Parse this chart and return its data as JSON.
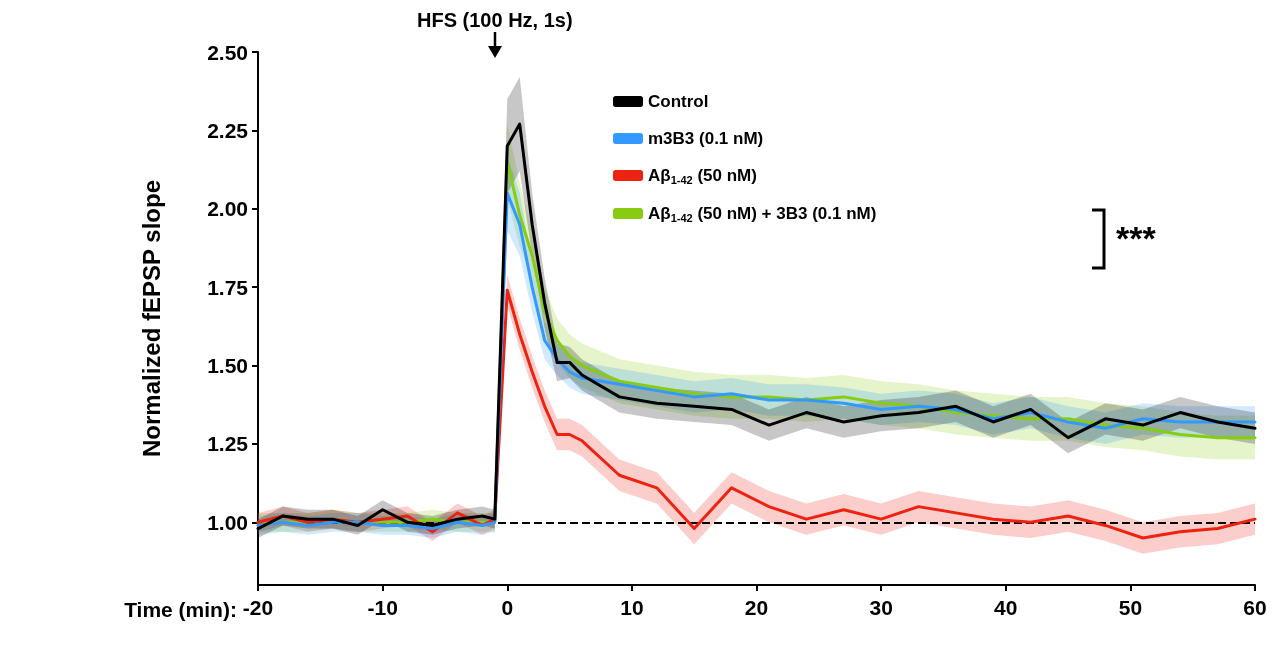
{
  "chart_data": {
    "type": "line",
    "xlabel": "Time (min):",
    "ylabel": "Normalized fEPSP slope",
    "x": [
      -20,
      -18,
      -16,
      -14,
      -12,
      -10,
      -8,
      -6,
      -4,
      -2,
      -1,
      0,
      1,
      2,
      3,
      4,
      5,
      6,
      9,
      12,
      15,
      18,
      21,
      24,
      27,
      30,
      33,
      36,
      39,
      42,
      45,
      48,
      51,
      54,
      57,
      60
    ],
    "series": [
      {
        "name": "Control",
        "color": "#000000",
        "values": [
          0.98,
          1.02,
          1.01,
          1.01,
          0.99,
          1.04,
          1.0,
          0.99,
          1.01,
          1.02,
          1.01,
          2.2,
          2.27,
          1.95,
          1.7,
          1.51,
          1.51,
          1.47,
          1.4,
          1.38,
          1.37,
          1.36,
          1.31,
          1.35,
          1.32,
          1.34,
          1.35,
          1.37,
          1.32,
          1.36,
          1.27,
          1.33,
          1.31,
          1.35,
          1.32,
          1.3
        ],
        "lower": [
          0.95,
          0.99,
          0.98,
          0.98,
          0.96,
          1.01,
          0.97,
          0.96,
          0.98,
          0.99,
          0.98,
          2.05,
          2.12,
          1.85,
          1.62,
          1.45,
          1.46,
          1.42,
          1.35,
          1.33,
          1.32,
          1.31,
          1.26,
          1.3,
          1.27,
          1.29,
          1.3,
          1.32,
          1.27,
          1.31,
          1.22,
          1.28,
          1.26,
          1.3,
          1.27,
          1.25
        ],
        "upper": [
          1.01,
          1.05,
          1.04,
          1.04,
          1.02,
          1.07,
          1.03,
          1.02,
          1.04,
          1.05,
          1.04,
          2.35,
          2.42,
          2.05,
          1.78,
          1.57,
          1.56,
          1.52,
          1.45,
          1.43,
          1.42,
          1.41,
          1.36,
          1.4,
          1.37,
          1.39,
          1.4,
          1.42,
          1.37,
          1.41,
          1.32,
          1.38,
          1.36,
          1.4,
          1.37,
          1.35
        ]
      },
      {
        "name": "m3B3 (0.1 nM)",
        "color": "#3399ff",
        "values": [
          0.99,
          1.0,
          0.99,
          1.0,
          1.0,
          0.99,
          0.99,
          0.98,
          1.0,
          0.99,
          1.0,
          2.05,
          1.95,
          1.75,
          1.58,
          1.52,
          1.48,
          1.46,
          1.44,
          1.42,
          1.4,
          1.41,
          1.39,
          1.39,
          1.38,
          1.36,
          1.37,
          1.36,
          1.33,
          1.35,
          1.32,
          1.3,
          1.33,
          1.32,
          1.32,
          1.32
        ],
        "lower": [
          0.96,
          0.97,
          0.96,
          0.97,
          0.97,
          0.96,
          0.96,
          0.95,
          0.97,
          0.96,
          0.97,
          1.93,
          1.85,
          1.67,
          1.52,
          1.47,
          1.43,
          1.41,
          1.39,
          1.37,
          1.35,
          1.36,
          1.34,
          1.34,
          1.33,
          1.31,
          1.32,
          1.31,
          1.28,
          1.3,
          1.27,
          1.25,
          1.28,
          1.27,
          1.27,
          1.27
        ],
        "upper": [
          1.02,
          1.03,
          1.02,
          1.03,
          1.03,
          1.02,
          1.02,
          1.01,
          1.03,
          1.02,
          1.03,
          2.17,
          2.05,
          1.83,
          1.64,
          1.57,
          1.53,
          1.51,
          1.49,
          1.47,
          1.45,
          1.46,
          1.44,
          1.44,
          1.43,
          1.41,
          1.42,
          1.41,
          1.38,
          1.4,
          1.37,
          1.35,
          1.38,
          1.37,
          1.37,
          1.37
        ]
      },
      {
        "name": "Aβ$_{1-42}$ (50 nM)",
        "color": "#ee2211",
        "values": [
          1.0,
          1.02,
          1.0,
          1.01,
          1.0,
          1.01,
          1.02,
          0.97,
          1.03,
          0.99,
          1.01,
          1.74,
          1.6,
          1.48,
          1.37,
          1.28,
          1.28,
          1.26,
          1.15,
          1.11,
          0.98,
          1.11,
          1.05,
          1.01,
          1.04,
          1.01,
          1.05,
          1.03,
          1.01,
          1.0,
          1.02,
          0.99,
          0.95,
          0.97,
          0.98,
          1.01
        ],
        "lower": [
          0.97,
          0.99,
          0.97,
          0.98,
          0.97,
          0.98,
          0.99,
          0.94,
          1.0,
          0.96,
          0.98,
          1.69,
          1.55,
          1.43,
          1.32,
          1.23,
          1.23,
          1.21,
          1.1,
          1.06,
          0.93,
          1.06,
          1.0,
          0.96,
          0.99,
          0.96,
          1.0,
          0.98,
          0.96,
          0.95,
          0.97,
          0.94,
          0.9,
          0.92,
          0.93,
          0.96
        ],
        "upper": [
          1.03,
          1.05,
          1.03,
          1.04,
          1.03,
          1.04,
          1.05,
          1.0,
          1.06,
          1.02,
          1.04,
          1.79,
          1.65,
          1.53,
          1.42,
          1.33,
          1.33,
          1.31,
          1.2,
          1.16,
          1.03,
          1.16,
          1.1,
          1.06,
          1.09,
          1.06,
          1.1,
          1.08,
          1.06,
          1.05,
          1.07,
          1.04,
          1.0,
          1.02,
          1.03,
          1.06
        ]
      },
      {
        "name": "Aβ$_{1-42}$ (50 nM) + 3B3 (0.1 nM)",
        "color": "#88cc11",
        "values": [
          1.0,
          1.0,
          1.0,
          1.01,
          1.0,
          1.0,
          1.0,
          1.01,
          1.0,
          1.0,
          1.0,
          2.15,
          1.98,
          1.85,
          1.67,
          1.58,
          1.53,
          1.5,
          1.45,
          1.43,
          1.41,
          1.4,
          1.4,
          1.39,
          1.4,
          1.38,
          1.37,
          1.35,
          1.34,
          1.33,
          1.33,
          1.31,
          1.3,
          1.28,
          1.27,
          1.27
        ],
        "lower": [
          0.97,
          0.97,
          0.97,
          0.98,
          0.97,
          0.97,
          0.97,
          0.98,
          0.97,
          0.97,
          0.97,
          2.03,
          1.88,
          1.77,
          1.59,
          1.51,
          1.46,
          1.43,
          1.38,
          1.36,
          1.34,
          1.33,
          1.33,
          1.32,
          1.33,
          1.31,
          1.3,
          1.28,
          1.27,
          1.26,
          1.26,
          1.24,
          1.23,
          1.21,
          1.2,
          1.2
        ],
        "upper": [
          1.03,
          1.03,
          1.03,
          1.04,
          1.03,
          1.03,
          1.03,
          1.04,
          1.03,
          1.03,
          1.03,
          2.27,
          2.08,
          1.93,
          1.75,
          1.65,
          1.6,
          1.57,
          1.52,
          1.5,
          1.48,
          1.47,
          1.47,
          1.46,
          1.47,
          1.45,
          1.44,
          1.42,
          1.41,
          1.4,
          1.4,
          1.38,
          1.37,
          1.35,
          1.34,
          1.34
        ]
      }
    ],
    "xlim": [
      -20,
      60
    ],
    "xticks": [
      -20,
      -10,
      0,
      10,
      20,
      30,
      40,
      50,
      60
    ],
    "ylim": [
      0.8,
      2.5
    ],
    "yticks": [
      {
        "value": 1,
        "label": "1.00"
      },
      {
        "value": 1.25,
        "label": "1.25"
      },
      {
        "value": 1.5,
        "label": "1.50"
      },
      {
        "value": 1.75,
        "label": "1.75"
      },
      {
        "value": 2,
        "label": "2.00"
      },
      {
        "value": 2.25,
        "label": "2.25"
      },
      {
        "value": 2.5,
        "label": "2.50"
      }
    ],
    "ref_lines": [
      {
        "axis": "y",
        "value": 1,
        "color": "#000000",
        "line_style": "dashed"
      }
    ],
    "annotations": [
      {
        "text": "HFS (100 Hz, 1s)",
        "x": -1,
        "y": 2.5
      },
      "***"
    ],
    "grid": false,
    "legend": "top right",
    "marker": "none",
    "line_style": "solid"
  }
}
